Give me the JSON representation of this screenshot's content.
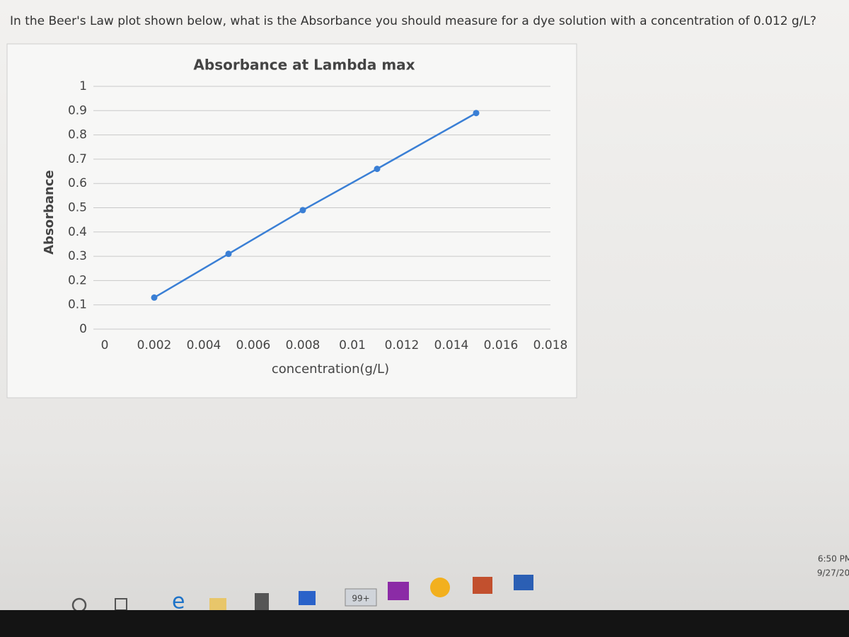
{
  "question": "In the Beer's Law plot shown below, what is the Absorbance you should measure for a dye solution with a concentration of 0.012 g/L?",
  "chart_data": {
    "type": "line",
    "title": "Absorbance at Lambda max",
    "x_label": "concentration(g/L)",
    "y_label": "Absorbance",
    "x": [
      0.002,
      0.005,
      0.008,
      0.011,
      0.015
    ],
    "series": [
      {
        "name": "Absorbance",
        "color": "#3a7fd5",
        "values": [
          0.13,
          0.31,
          0.49,
          0.66,
          0.89
        ]
      }
    ],
    "xlim": [
      0,
      0.018
    ],
    "xticks": [
      0,
      0.002,
      0.004,
      0.006,
      0.008,
      0.01,
      0.012,
      0.014,
      0.016,
      0.018
    ],
    "ylim": [
      0,
      1
    ],
    "yticks": [
      0,
      0.1,
      0.2,
      0.3,
      0.4,
      0.5,
      0.6,
      0.7,
      0.8,
      0.9,
      1
    ],
    "grid": true
  },
  "taskbar": {
    "badge": "99+",
    "time": "6:50 PM",
    "date": "9/27/20"
  }
}
